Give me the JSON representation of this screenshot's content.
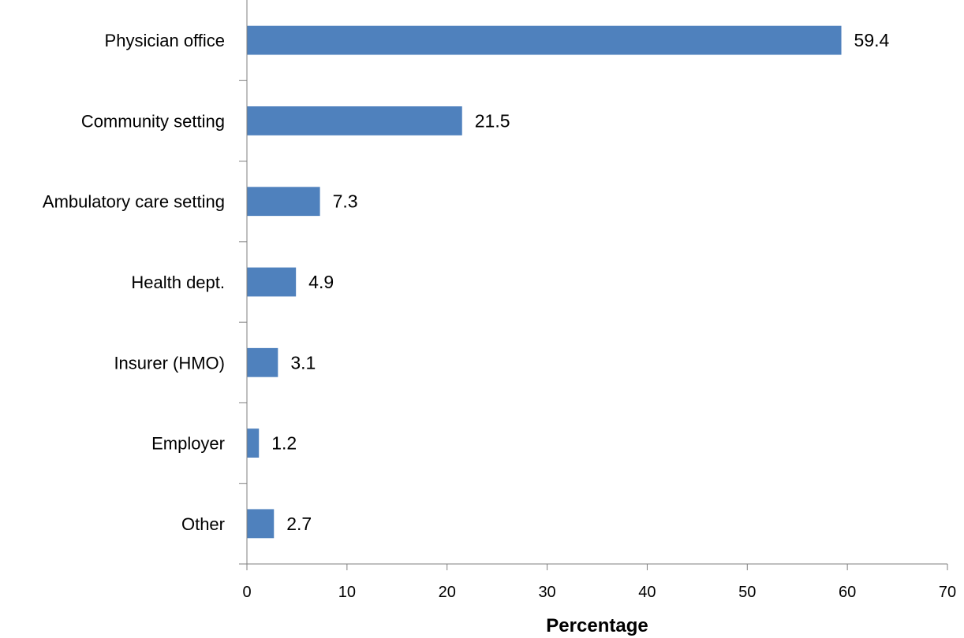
{
  "chart_data": {
    "type": "bar",
    "orientation": "horizontal",
    "categories": [
      "Physician office",
      "Community setting",
      "Ambulatory care setting",
      "Health dept.",
      "Insurer (HMO)",
      "Employer",
      "Other"
    ],
    "values": [
      59.4,
      21.5,
      7.3,
      4.9,
      3.1,
      1.2,
      2.7
    ],
    "value_labels": [
      "59.4",
      "21.5",
      "7.3",
      "4.9",
      "3.1",
      "1.2",
      "2.7"
    ],
    "xlabel": "Percentage",
    "ylabel": "",
    "xlim": [
      0,
      70
    ],
    "x_ticks": [
      0,
      10,
      20,
      30,
      40,
      50,
      60,
      70
    ],
    "x_tick_labels": [
      "0",
      "10",
      "20",
      "30",
      "40",
      "50",
      "60",
      "70"
    ],
    "grid": false,
    "bar_color": "#4f81bd",
    "axis_color": "#7f7f7f"
  }
}
